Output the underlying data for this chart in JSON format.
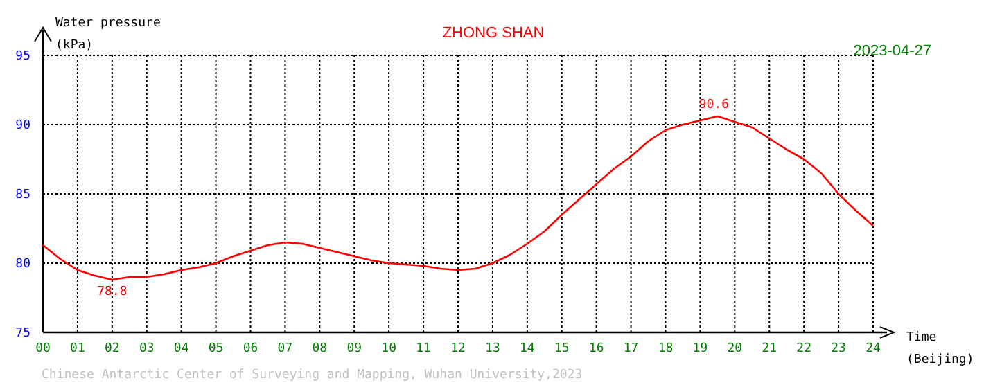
{
  "chart_data": {
    "type": "line",
    "title": "ZHONG SHAN",
    "subtitle": "2023-04-27",
    "xlabel": "Time\n(Beijing)",
    "ylabel": "Water pressure\n(kPa)",
    "annotations": [
      {
        "text": "90.6",
        "x": 19.4,
        "y": 90.6
      },
      {
        "text": "78.8",
        "x": 2,
        "y": 78.8
      },
      "Chinese Antarctic Center of Surveying and Mapping, Wuhan University,2023"
    ],
    "x": [
      0,
      0.5,
      1,
      1.5,
      2,
      2.5,
      3,
      3.5,
      4,
      4.5,
      5,
      5.5,
      6,
      6.5,
      7,
      7.5,
      8,
      8.5,
      9,
      9.5,
      10,
      10.5,
      11,
      11.5,
      12,
      12.5,
      13,
      13.5,
      14,
      14.5,
      15,
      15.5,
      16,
      16.5,
      17,
      17.5,
      18,
      18.5,
      19,
      19.5,
      20,
      20.5,
      21,
      21.5,
      22,
      22.5,
      23,
      23.5,
      24
    ],
    "series": [
      {
        "color": "#ff0000",
        "values": [
          81.3,
          80.3,
          79.5,
          79.1,
          78.8,
          79.0,
          79.0,
          79.2,
          79.5,
          79.7,
          80.0,
          80.5,
          80.9,
          81.3,
          81.5,
          81.4,
          81.1,
          80.8,
          80.5,
          80.2,
          80.0,
          79.9,
          79.8,
          79.6,
          79.5,
          79.6,
          80.0,
          80.6,
          81.4,
          82.3,
          83.5,
          84.6,
          85.7,
          86.8,
          87.7,
          88.8,
          89.6,
          90.0,
          90.3,
          90.6,
          90.2,
          89.8,
          89.0,
          88.2,
          87.5,
          86.5,
          85.0,
          83.8,
          82.7
        ]
      }
    ],
    "xlim": [
      0,
      24
    ],
    "xticks": [
      {
        "value": 0,
        "label": "00"
      },
      {
        "value": 1,
        "label": "01"
      },
      {
        "value": 2,
        "label": "02"
      },
      {
        "value": 3,
        "label": "03"
      },
      {
        "value": 4,
        "label": "04"
      },
      {
        "value": 5,
        "label": "05"
      },
      {
        "value": 6,
        "label": "06"
      },
      {
        "value": 7,
        "label": "07"
      },
      {
        "value": 8,
        "label": "08"
      },
      {
        "value": 9,
        "label": "09"
      },
      10,
      11,
      12,
      13,
      14,
      15,
      16,
      17,
      18,
      19,
      20,
      21,
      22,
      23,
      24
    ],
    "ylim": [
      75,
      95
    ],
    "yticks": [
      75,
      80,
      85,
      90,
      95
    ],
    "grid": true,
    "marker": "none",
    "line_style": "solid"
  }
}
